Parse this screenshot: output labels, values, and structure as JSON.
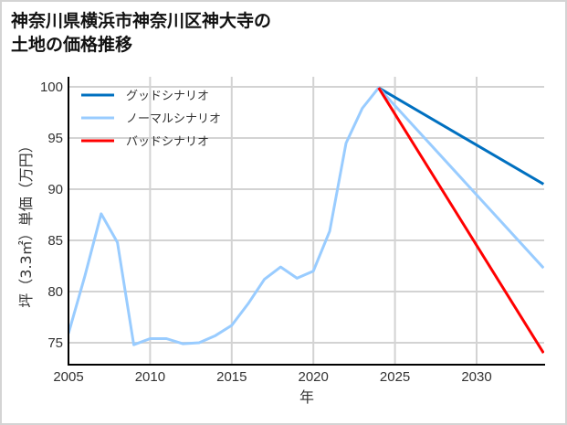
{
  "title": {
    "line1": "神奈川県横浜市神奈川区神大寺の",
    "line2": "土地の価格推移"
  },
  "axes": {
    "xlabel": "年",
    "ylabel": "坪（3.3㎡）単価（万円）",
    "xticks": [
      "2005",
      "2010",
      "2015",
      "2020",
      "2025",
      "2030"
    ],
    "yticks": [
      "75",
      "80",
      "85",
      "90",
      "95",
      "100"
    ]
  },
  "legend": {
    "items": [
      {
        "label": "グッドシナリオ",
        "color": "#0070c0"
      },
      {
        "label": "ノーマルシナリオ",
        "color": "#99ccff"
      },
      {
        "label": "バッドシナリオ",
        "color": "#ff0000"
      }
    ]
  },
  "chart_data": {
    "type": "line",
    "title": "神奈川県横浜市神奈川区神大寺の土地の価格推移",
    "xlabel": "年",
    "ylabel": "坪（3.3㎡）単価（万円）",
    "xlim": [
      2005,
      2034.1
    ],
    "ylim": [
      72.9,
      101.0
    ],
    "grid": true,
    "legend_position": "upper left",
    "series": [
      {
        "name": "ノーマルシナリオ",
        "color": "#99ccff",
        "x": [
          2005,
          2006,
          2007,
          2008,
          2009,
          2010,
          2011,
          2012,
          2013,
          2014,
          2015,
          2016,
          2017,
          2018,
          2019,
          2020,
          2021,
          2022,
          2023,
          2024,
          2034.1
        ],
        "values": [
          75.9,
          81.5,
          87.6,
          84.8,
          74.8,
          75.4,
          75.4,
          74.9,
          75.0,
          75.7,
          76.7,
          78.8,
          81.2,
          82.4,
          81.3,
          82.0,
          85.9,
          94.5,
          97.9,
          99.9,
          82.3
        ]
      },
      {
        "name": "グッドシナリオ",
        "color": "#0070c0",
        "x": [
          2024,
          2034.1
        ],
        "values": [
          99.9,
          90.5
        ]
      },
      {
        "name": "バッドシナリオ",
        "color": "#ff0000",
        "x": [
          2024,
          2034.1
        ],
        "values": [
          99.9,
          74.0
        ]
      }
    ]
  }
}
